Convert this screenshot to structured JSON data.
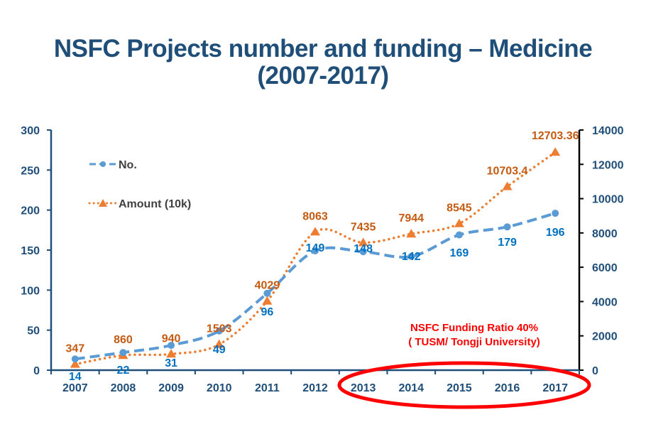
{
  "title": {
    "line1": "NSFC Projects number and funding – Medicine",
    "line2": "(2007-2017)"
  },
  "colors": {
    "title": "#1f4e79",
    "axis": "#1f4e79",
    "right_axis": "#000000",
    "no_series": "#5b9bd5",
    "no_label": "#0070c0",
    "amount_series": "#ed7d31",
    "amount_label": "#c55a11",
    "annotation": "#ff0000",
    "highlight_ellipse": "#ff0000"
  },
  "chart_data": {
    "type": "line",
    "title": "NSFC Projects number and funding – Medicine (2007-2017)",
    "xlabel": "",
    "ylabel": "",
    "categories": [
      "2007",
      "2008",
      "2009",
      "2010",
      "2011",
      "2012",
      "2013",
      "2014",
      "2015",
      "2016",
      "2017"
    ],
    "y_left": {
      "range": [
        0,
        300
      ],
      "ticks": [
        0,
        50,
        100,
        150,
        200,
        250,
        300
      ]
    },
    "y_right": {
      "range": [
        0,
        14000
      ],
      "ticks": [
        0,
        2000,
        4000,
        6000,
        8000,
        10000,
        12000,
        14000
      ]
    },
    "grid": false,
    "legend_position": "top-left",
    "series": [
      {
        "name": "No.",
        "axis": "left",
        "style": "dashed-smooth",
        "marker": "circle",
        "values": [
          14,
          22,
          31,
          49,
          96,
          149,
          148,
          142,
          169,
          179,
          196
        ],
        "labels": [
          "14",
          "22",
          "31",
          "49",
          "96",
          "149",
          "148",
          "142",
          "169",
          "179",
          "196"
        ]
      },
      {
        "name": "Amount (10k)",
        "axis": "right",
        "style": "dotted-smooth",
        "marker": "triangle",
        "values": [
          347,
          860,
          940,
          1503,
          4029,
          8063,
          7435,
          7944,
          8545,
          10703.4,
          12703.36
        ],
        "labels": [
          "347",
          "860",
          "940",
          "1503",
          "4029",
          "8063",
          "7435",
          "7944",
          "8545",
          "10703.4",
          "12703.36"
        ]
      }
    ],
    "annotations": [
      {
        "text": "NSFC Funding Ratio 40%"
      },
      {
        "text": "( TUSM/ Tongji University)"
      }
    ],
    "highlight": {
      "shape": "ellipse",
      "categories": [
        "2013",
        "2014",
        "2015",
        "2016",
        "2017"
      ]
    }
  }
}
